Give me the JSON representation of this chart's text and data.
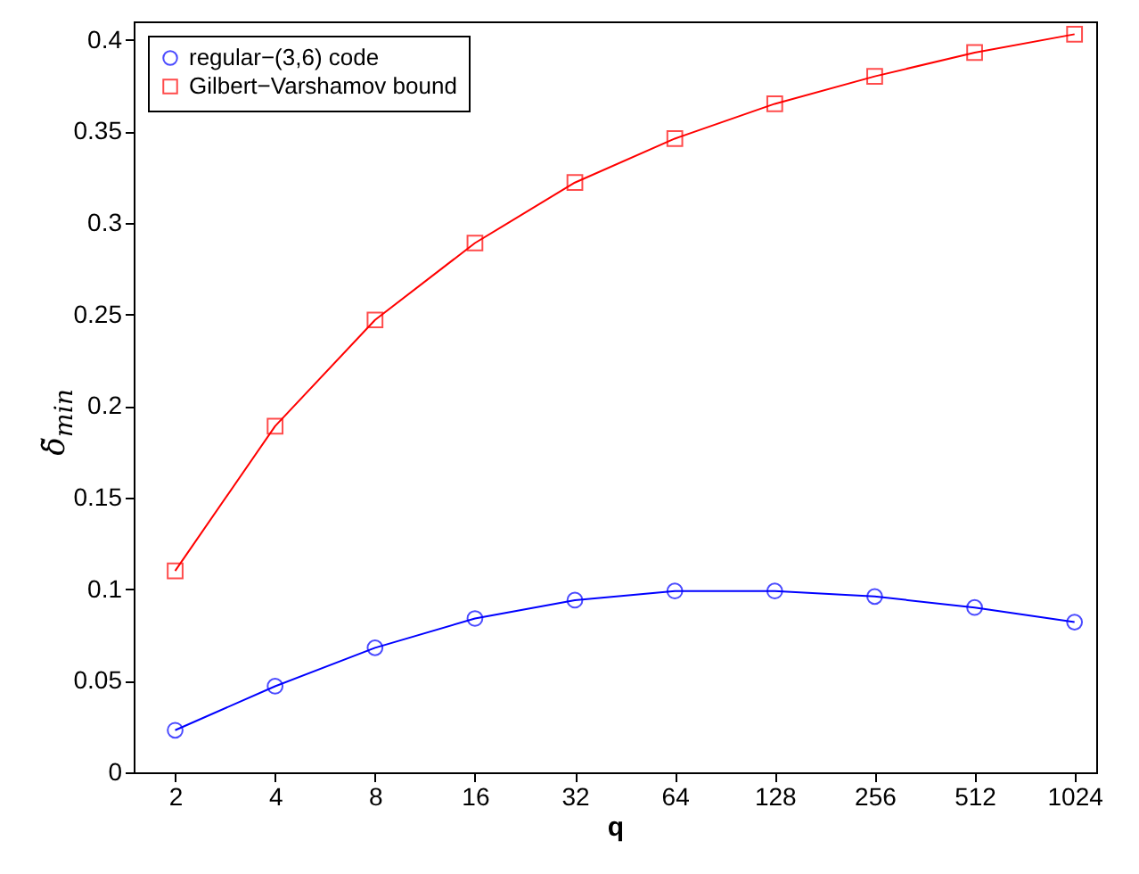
{
  "chart_data": {
    "type": "line",
    "xlabel": "q",
    "ylabel": "δ̃$_{min}$",
    "x": [
      2,
      4,
      8,
      16,
      32,
      64,
      128,
      256,
      512,
      1024
    ],
    "series": [
      {
        "name": "regular−(3,6) code",
        "color": "#0000ff",
        "marker": "circle",
        "values": [
          0.023,
          0.047,
          0.068,
          0.084,
          0.094,
          0.099,
          0.099,
          0.096,
          0.09,
          0.082
        ]
      },
      {
        "name": "Gilbert−Varshamov bound",
        "color": "#ff0000",
        "marker": "square",
        "values": [
          0.11,
          0.189,
          0.247,
          0.289,
          0.322,
          0.346,
          0.365,
          0.38,
          0.393,
          0.403
        ]
      }
    ],
    "log": "x",
    "xlim": [
      1.5,
      1190
    ],
    "xticks": [
      2,
      4,
      8,
      16,
      32,
      64,
      128,
      256,
      512,
      1024
    ],
    "ylim": [
      0,
      0.41
    ],
    "yticks": [
      0,
      0.05,
      0.1,
      0.15,
      0.2,
      0.25,
      0.3,
      0.35,
      0.4
    ],
    "grid": false,
    "legend": "top left",
    "line_style": "solid"
  }
}
